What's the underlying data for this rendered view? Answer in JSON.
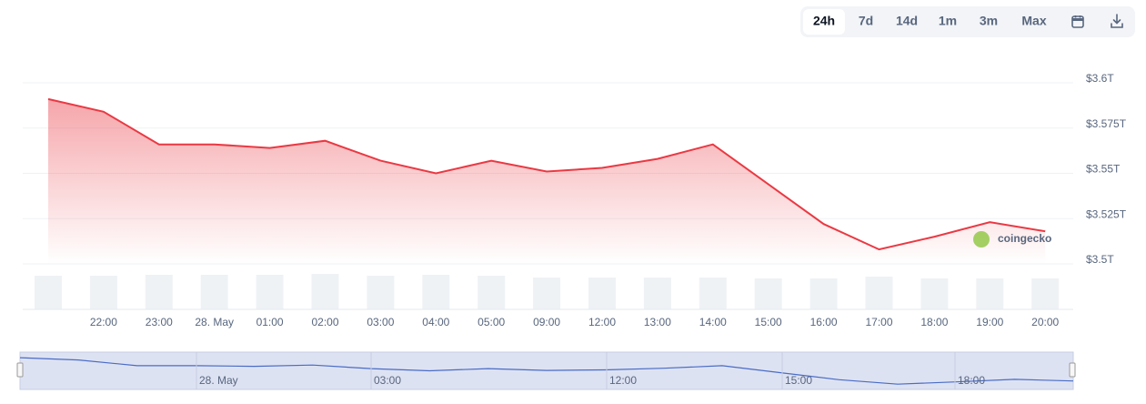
{
  "chart_data": {
    "type": "line",
    "categories": [
      null,
      "22:00",
      "23:00",
      "28. May",
      "01:00",
      "02:00",
      "03:00",
      "04:00",
      "05:00",
      "09:00",
      "12:00",
      "13:00",
      "14:00",
      "15:00",
      "16:00",
      "17:00",
      "18:00",
      "19:00",
      "20:00"
    ],
    "values": [
      3.591,
      3.584,
      3.566,
      3.566,
      3.564,
      3.568,
      3.557,
      3.55,
      3.557,
      3.551,
      3.553,
      3.558,
      3.566,
      3.544,
      3.522,
      3.508,
      3.515,
      3.523,
      3.518
    ],
    "color": "#ea3943",
    "ylim": [
      3.5,
      3.6
    ],
    "yticks": [
      {
        "value": 3.6,
        "label": "$3.6T"
      },
      {
        "value": 3.575,
        "label": "$3.575T"
      },
      {
        "value": 3.55,
        "label": "$3.55T"
      },
      {
        "value": 3.525,
        "label": "$3.525T"
      },
      {
        "value": 3.5,
        "label": "$3.5T"
      }
    ],
    "grid": true,
    "volume": {
      "values": [
        37,
        37,
        38,
        38,
        38,
        39,
        37,
        38,
        37,
        35,
        35,
        35,
        35,
        34,
        34,
        36,
        34,
        34,
        34
      ],
      "color": "#eff2f5",
      "lim": [
        0,
        40
      ]
    },
    "watermark": "coingecko",
    "range_buttons": [
      "24h",
      "7d",
      "14d",
      "1m",
      "3m",
      "Max"
    ],
    "active_range": 0,
    "navigator": {
      "labels": [
        "28. May",
        "03:00",
        "12:00",
        "15:00",
        "18:00"
      ],
      "color": "#4a6cc4"
    }
  }
}
